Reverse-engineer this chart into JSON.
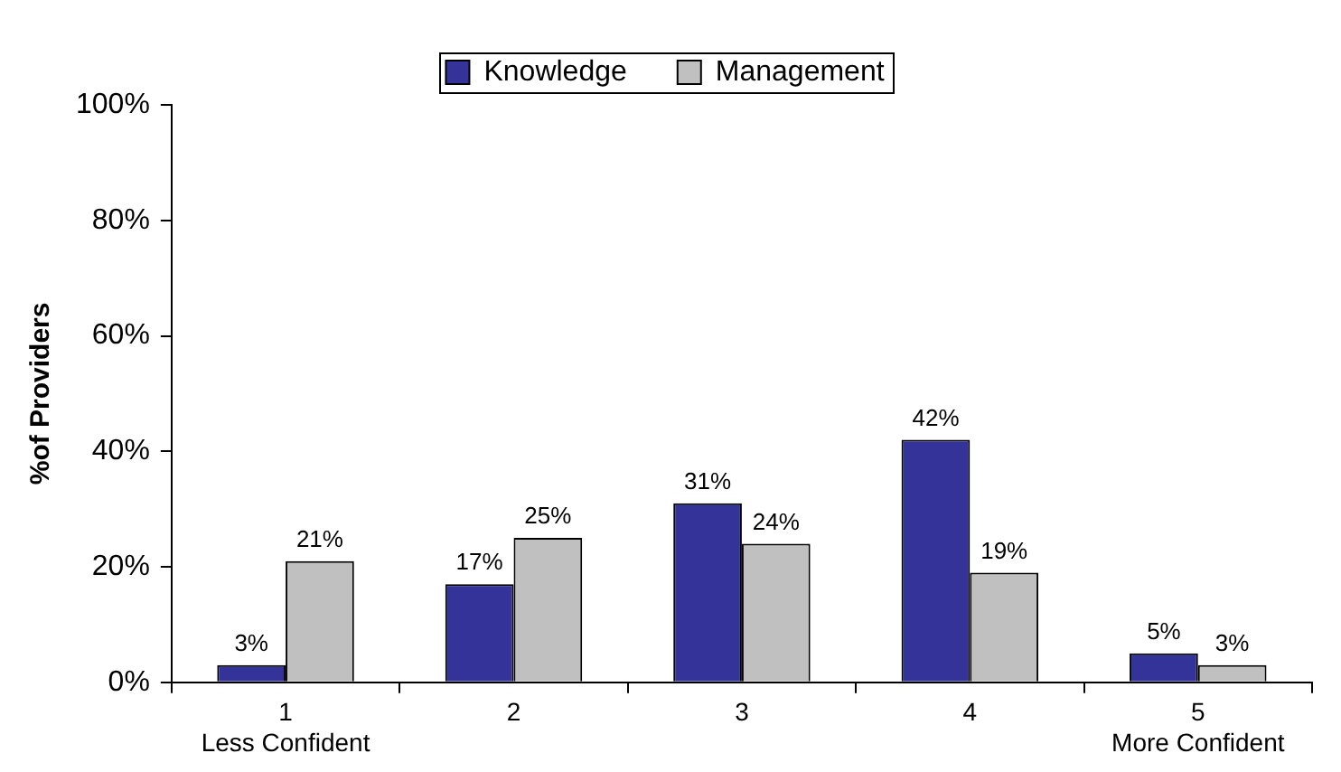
{
  "chart_data": {
    "type": "bar",
    "categories": [
      "1\nLess Confident",
      "2",
      "3",
      "4",
      "5\nMore Confident"
    ],
    "ylabel": "%of Providers",
    "series": [
      {
        "name": "Knowledge",
        "color": "#333399",
        "values": [
          3,
          17,
          31,
          42,
          5
        ],
        "value_labels": [
          "3%",
          "17%",
          "31%",
          "42%",
          "5%"
        ]
      },
      {
        "name": "Management",
        "color": "#c0c0c0",
        "values": [
          21,
          25,
          24,
          19,
          3
        ],
        "value_labels": [
          "21%",
          "25%",
          "24%",
          "19%",
          "3%"
        ]
      }
    ],
    "ylim": [
      0,
      100
    ],
    "yticks": [
      {
        "value": 0,
        "label": "0%"
      },
      {
        "value": 20,
        "label": "20%"
      },
      {
        "value": 40,
        "label": "40%"
      },
      {
        "value": 60,
        "label": "60%"
      },
      {
        "value": 80,
        "label": "80%"
      },
      {
        "value": 100,
        "label": "100%"
      }
    ],
    "grid": false,
    "legend": "top"
  }
}
